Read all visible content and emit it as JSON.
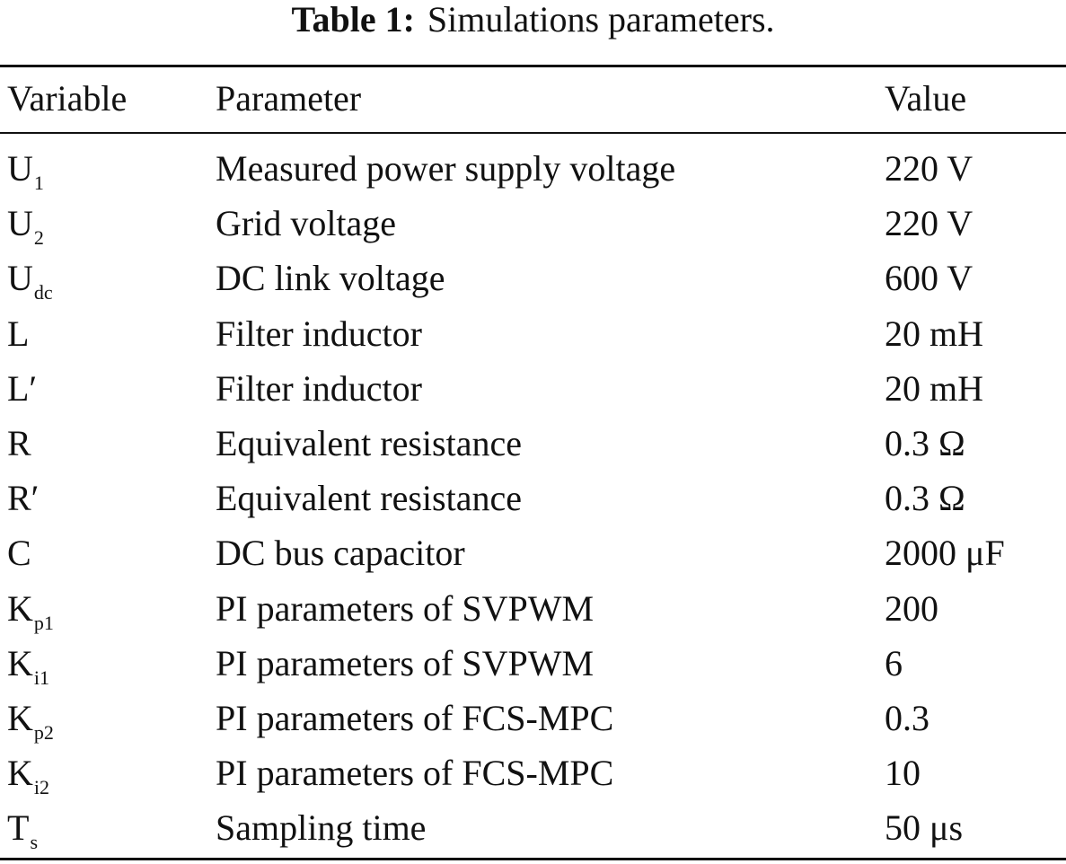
{
  "caption": {
    "label": "Table 1:",
    "text": "Simulations parameters."
  },
  "table": {
    "header": [
      "Variable",
      "Parameter",
      "Value"
    ],
    "rows": [
      [
        {
          "base": "U",
          "sub": "1"
        },
        "Measured power supply voltage",
        "220 V"
      ],
      [
        {
          "base": "U",
          "sub": "2"
        },
        "Grid voltage",
        "220 V"
      ],
      [
        {
          "base": "U",
          "sub": "dc"
        },
        "DC link voltage",
        "600 V"
      ],
      [
        {
          "base": "L"
        },
        "Filter inductor",
        "20 mH"
      ],
      [
        {
          "base": "L′"
        },
        "Filter inductor",
        "20 mH"
      ],
      [
        {
          "base": "R"
        },
        "Equivalent resistance",
        "0.3 Ω"
      ],
      [
        {
          "base": "R′"
        },
        "Equivalent resistance",
        "0.3 Ω"
      ],
      [
        {
          "base": "C"
        },
        "DC bus capacitor",
        "2000 μF"
      ],
      [
        {
          "base": "K",
          "sub": "p1"
        },
        "PI parameters of SVPWM",
        "200"
      ],
      [
        {
          "base": "K",
          "sub": "i1"
        },
        "PI parameters of SVPWM",
        "6"
      ],
      [
        {
          "base": "K",
          "sub": "p2"
        },
        "PI parameters of FCS-MPC",
        "0.3"
      ],
      [
        {
          "base": "K",
          "sub": "i2"
        },
        "PI parameters of FCS-MPC",
        "10"
      ],
      [
        {
          "base": "T",
          "sub": "s"
        },
        "Sampling time",
        "50 μs"
      ]
    ]
  }
}
